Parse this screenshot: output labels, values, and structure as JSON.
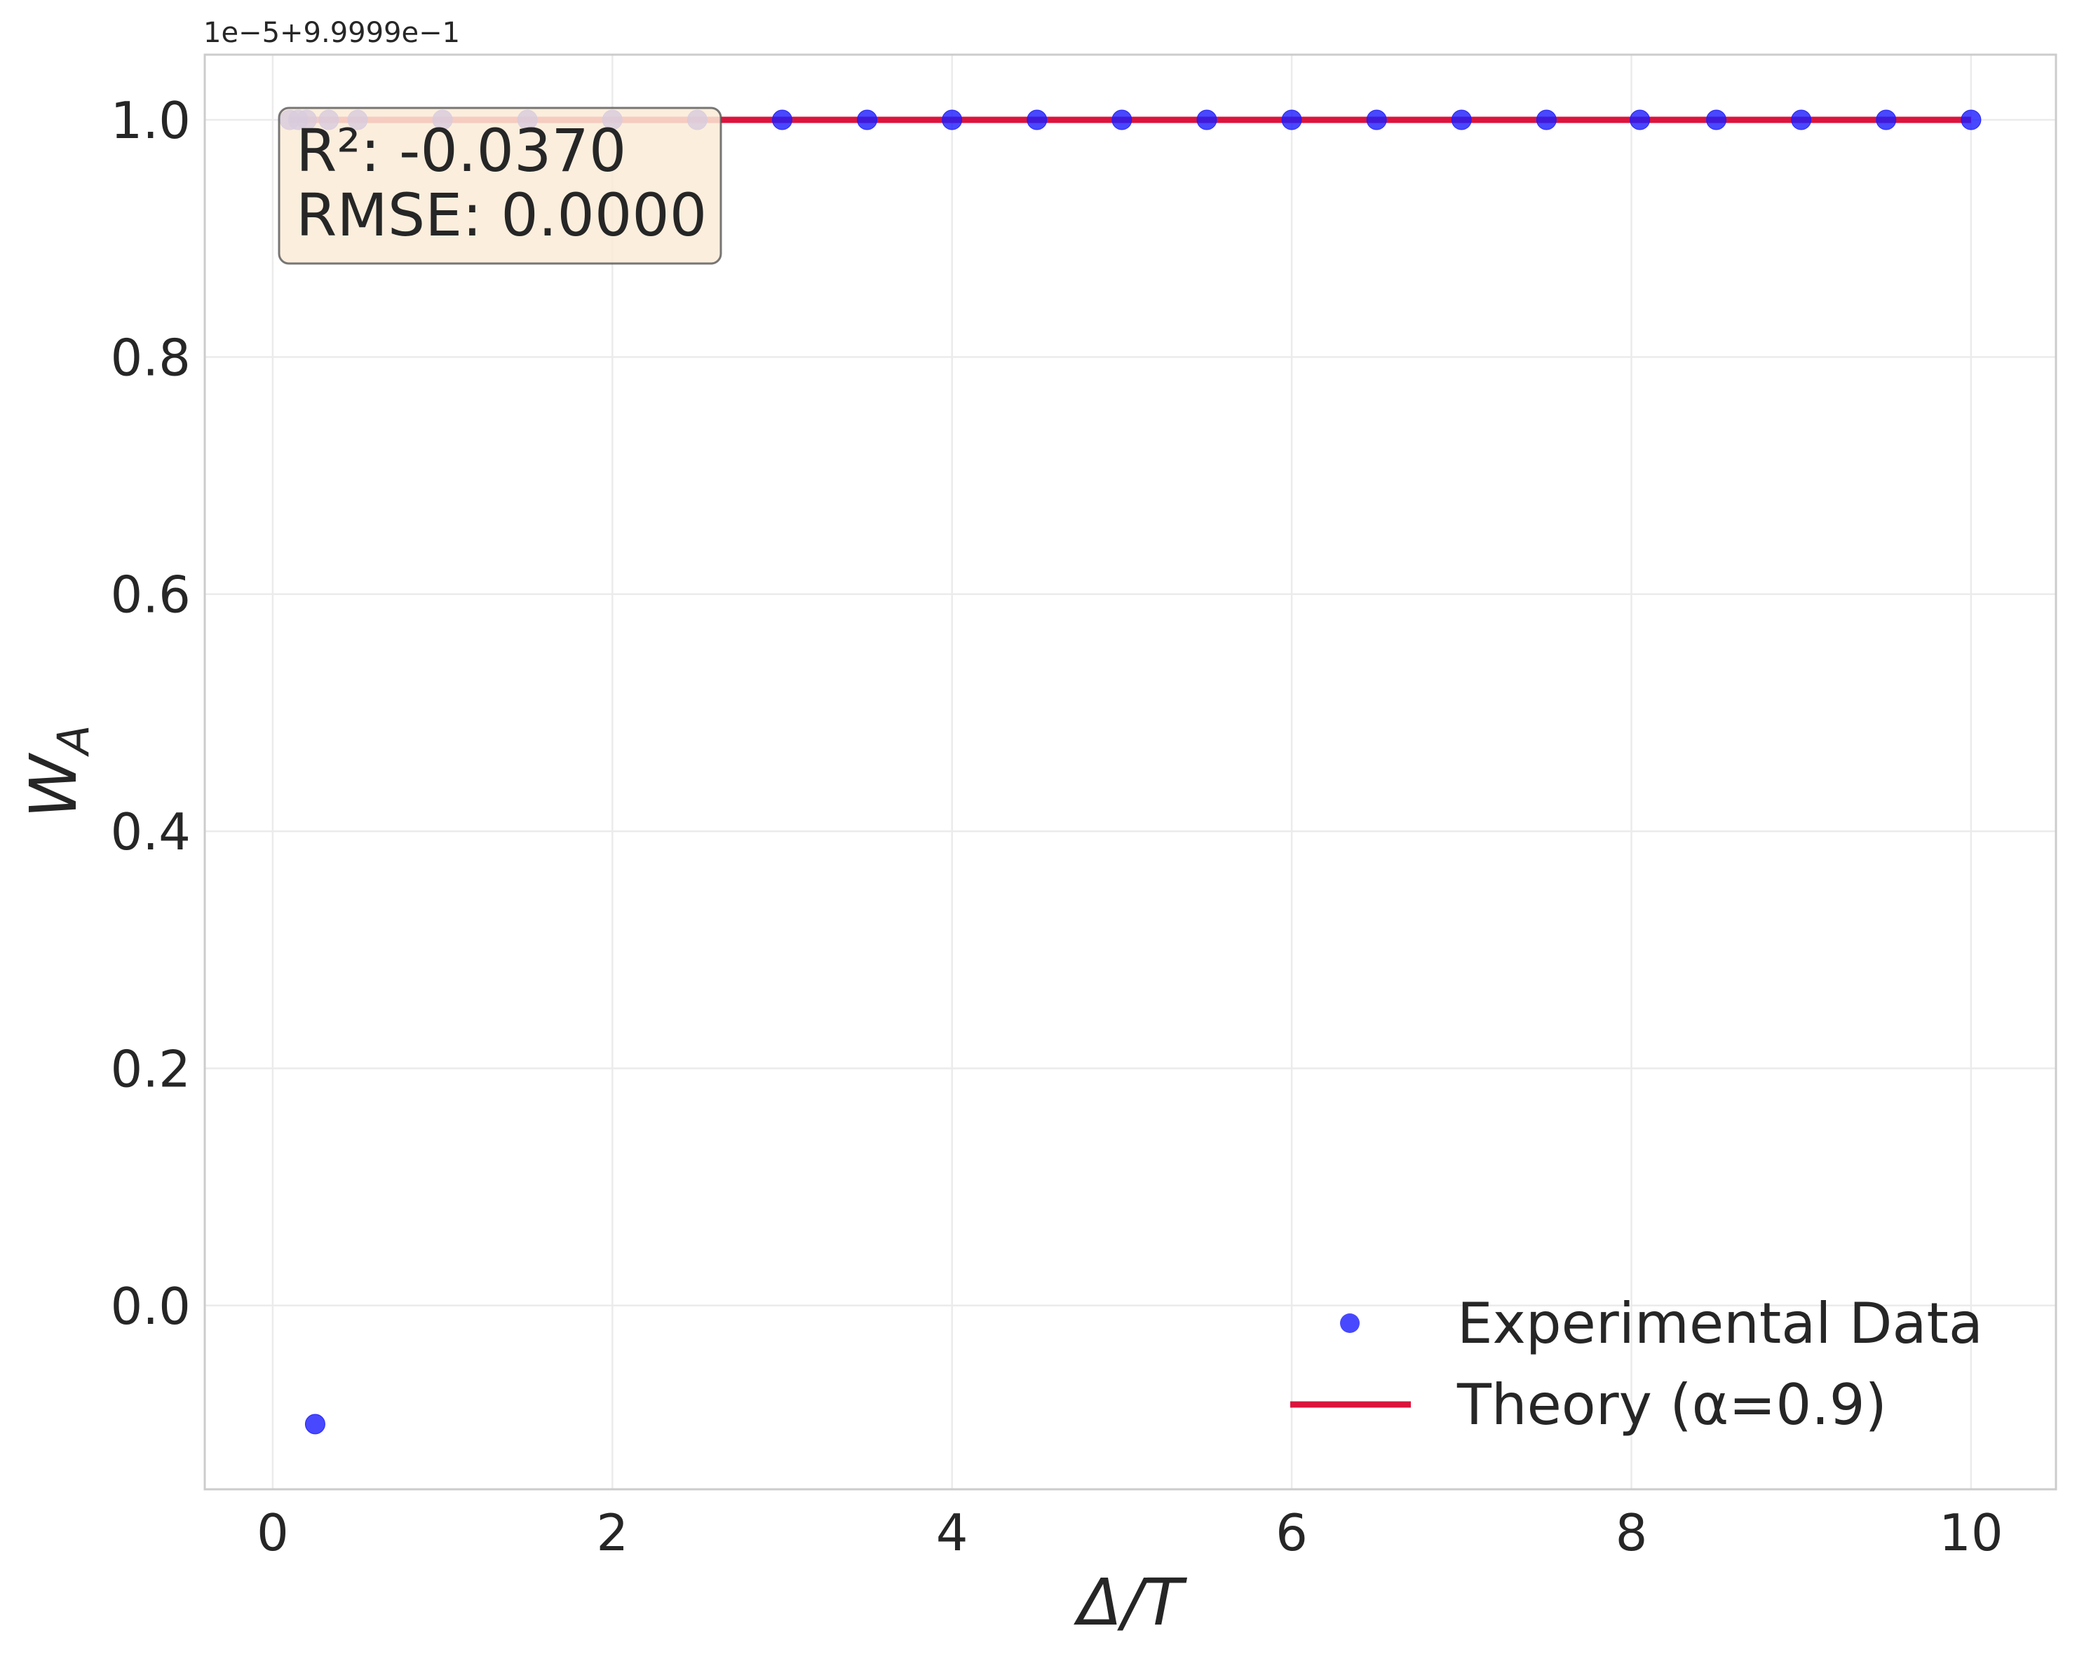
{
  "chart_data": {
    "type": "scatter",
    "xlabel": "Δ/T",
    "ylabel": "W_A",
    "ylabel_main": "W",
    "ylabel_sub": "A",
    "offset_text": "1e−5+9.9999e−1",
    "xlim": [
      -0.4,
      10.5
    ],
    "ylim": [
      -0.155,
      1.055
    ],
    "xticks": [
      0,
      2,
      4,
      6,
      8,
      10
    ],
    "xtick_labels": [
      "0",
      "2",
      "4",
      "6",
      "8",
      "10"
    ],
    "yticks": [
      0.0,
      0.2,
      0.4,
      0.6,
      0.8,
      1.0
    ],
    "ytick_labels": [
      "0.0",
      "0.2",
      "0.4",
      "0.6",
      "0.8",
      "1.0"
    ],
    "grid": true,
    "legend_position": "bottom-right",
    "series": [
      {
        "name": "Experimental Data",
        "kind": "scatter",
        "color": "#1a1aff",
        "x": [
          0.1,
          0.15,
          0.2,
          0.25,
          0.33,
          0.5,
          1.0,
          1.5,
          2.0,
          2.5,
          3.0,
          3.5,
          4.0,
          4.5,
          5.0,
          5.5,
          6.0,
          6.5,
          7.0,
          7.5,
          8.05,
          8.5,
          9.0,
          9.5,
          10.0
        ],
        "y": [
          1.0,
          1.0,
          1.0,
          -0.1,
          1.0,
          1.0,
          1.0,
          1.0,
          1.0,
          1.0,
          1.0,
          1.0,
          1.0,
          1.0,
          1.0,
          1.0,
          1.0,
          1.0,
          1.0,
          1.0,
          1.0,
          1.0,
          1.0,
          1.0,
          1.0
        ]
      },
      {
        "name": "Theory (α=0.9)",
        "kind": "line",
        "color": "#dc143c",
        "x": [
          0.1,
          10.0
        ],
        "y": [
          1.0,
          1.0
        ]
      }
    ],
    "annotation": {
      "lines": [
        "R²: -0.0370",
        "RMSE: 0.0000"
      ],
      "box_color": "#faebd7",
      "position": "top-left"
    }
  }
}
